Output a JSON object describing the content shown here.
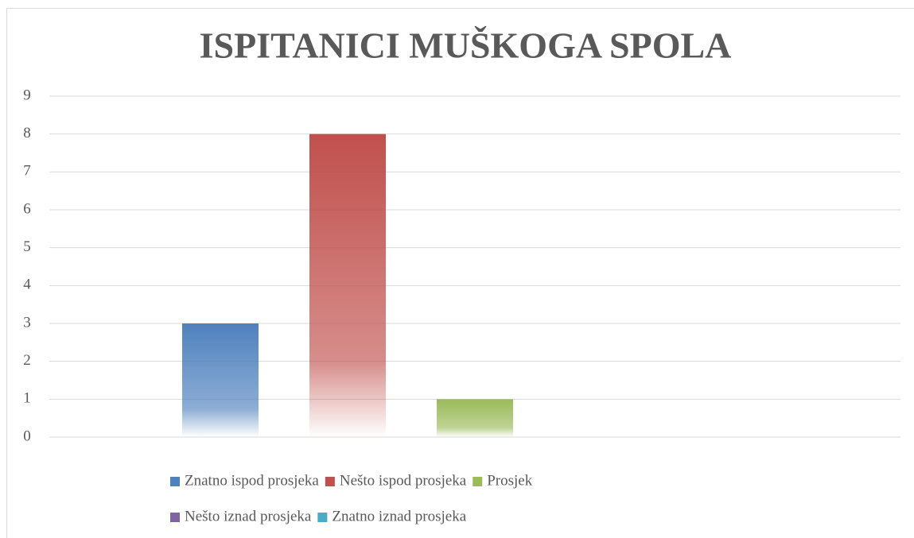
{
  "chart_data": {
    "type": "bar",
    "title": "ISPITANICI MUŠKOGA SPOLA",
    "categories": [
      null
    ],
    "series": [
      {
        "name": "Znatno ispod prosjeka",
        "color": "#4f81bd",
        "values": [
          3
        ]
      },
      {
        "name": "Nešto ispod prosjeka",
        "color": "#c0504d",
        "values": [
          8
        ]
      },
      {
        "name": "Prosjek",
        "color": "#9bbb59",
        "values": [
          1
        ]
      },
      {
        "name": "Nešto iznad prosjeka",
        "color": "#8064a2",
        "values": [
          0
        ]
      },
      {
        "name": "Znatno iznad prosjeka",
        "color": "#4bacc6",
        "values": [
          0
        ]
      }
    ],
    "ylim": [
      0,
      9
    ],
    "yticks": [
      0,
      1,
      2,
      3,
      4,
      5,
      6,
      7,
      8,
      9
    ],
    "grid": true,
    "legend": "bottom"
  }
}
